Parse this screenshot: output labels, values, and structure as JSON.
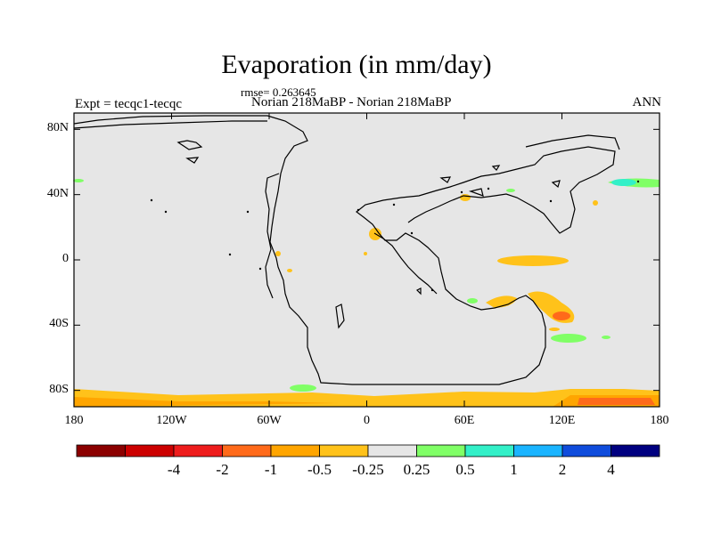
{
  "title": "Evaporation (in mm/day)",
  "rmse_label": "rmse= 0.263645",
  "experiment_label": "Expt = tecqc1-tecqc",
  "comparison_label": "Norian 218MaBP - Norian 218MaBP",
  "season_label": "ANN",
  "map": {
    "projection": "cylindrical equidistant",
    "lon_range": [
      -180,
      180
    ],
    "lat_range": [
      -90,
      90
    ],
    "lat_ticks": [
      {
        "value": 80,
        "label": "80N"
      },
      {
        "value": 40,
        "label": "40N"
      },
      {
        "value": 0,
        "label": "0"
      },
      {
        "value": -40,
        "label": "40S"
      },
      {
        "value": -80,
        "label": "80S"
      }
    ],
    "lon_ticks": [
      {
        "value": -180,
        "label": "180"
      },
      {
        "value": -120,
        "label": "120W"
      },
      {
        "value": -60,
        "label": "60W"
      },
      {
        "value": 0,
        "label": "0"
      },
      {
        "value": 60,
        "label": "60E"
      },
      {
        "value": 120,
        "label": "120E"
      },
      {
        "value": 180,
        "label": "180"
      }
    ]
  },
  "colorbar": {
    "colors": [
      "#8b0000",
      "#cc0000",
      "#ee1c1c",
      "#ff6a1a",
      "#ffa500",
      "#ffc21a",
      "#e6e6e6",
      "#80ff66",
      "#33f0c8",
      "#1ab4ff",
      "#0f4cdc",
      "#000080"
    ],
    "labels": [
      "-4",
      "-2",
      "-1",
      "-0.5",
      "-0.25",
      "0.25",
      "0.5",
      "1",
      "2",
      "4"
    ]
  },
  "colors": {
    "neutral_fill": "#e6e6e6",
    "orange": "#ffc21a",
    "dark_orange": "#ffa500",
    "green": "#80ff66",
    "teal": "#33f0c8"
  }
}
